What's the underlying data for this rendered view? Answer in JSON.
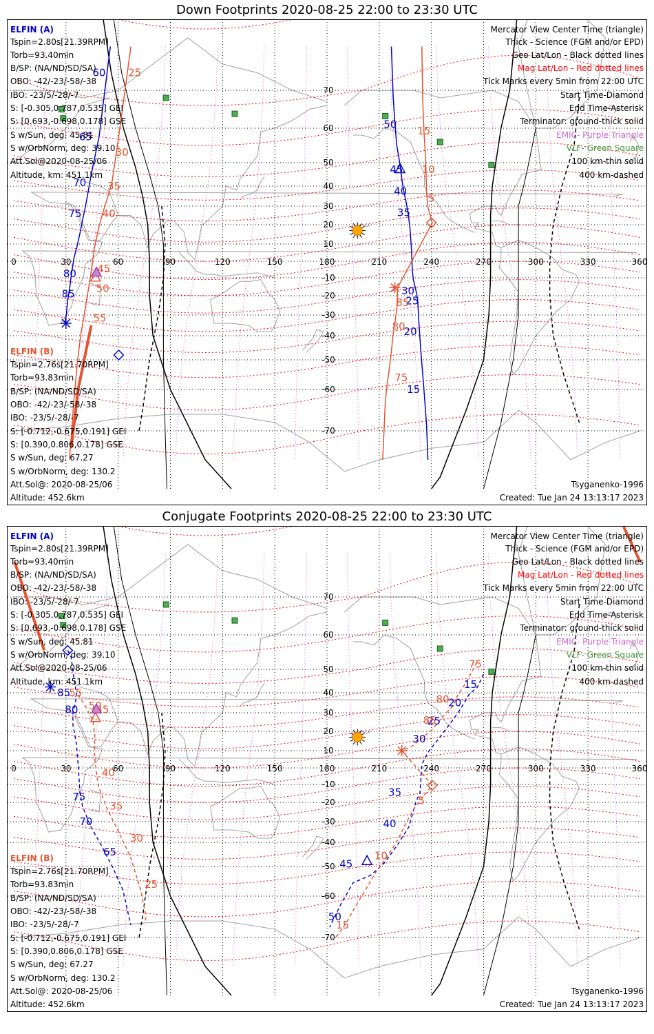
{
  "colors": {
    "elfin_a": "#0000cc",
    "elfin_b": "#e5532f",
    "mag_grid": "#ff0000",
    "geo_grid": "#000000",
    "emic": "#cc66cc",
    "vlf": "#3a9a3a",
    "sun": "#ffa500",
    "coast": "#a0a0a0"
  },
  "legend_right": [
    {
      "text": "Mercator View Center Time (triangle)",
      "color": "#000000"
    },
    {
      "text": "Thick - Science (FGM and/or EPD)",
      "color": "#000000"
    },
    {
      "text": "Geo Lat/Lon - Black dotted lines",
      "color": "#000000"
    },
    {
      "text": "Mag Lat/Lon - Red dotted lines",
      "color": "#ff0000"
    },
    {
      "text": "Tick Marks every 5min from 22:00 UTC",
      "color": "#000000"
    },
    {
      "text": "Start Time-Diamond",
      "color": "#000000"
    },
    {
      "text": "End Time-Asterisk",
      "color": "#000000"
    },
    {
      "text": "Terminator: ground-thick solid",
      "color": "#000000"
    },
    {
      "text": "EMIC- Purple Triangle",
      "color": "#cc66cc"
    },
    {
      "text": "VLF- Green Square",
      "color": "#3a9a3a"
    },
    {
      "text": "100 km-thin solid",
      "color": "#000000"
    },
    {
      "text": "400 km-dashed",
      "color": "#000000"
    }
  ],
  "elfin_a_info": {
    "name": "ELFIN (A)",
    "lines": [
      "Tspin=2.80s[21.39RPM]",
      "Torb=93.40min",
      "B/SP: (NA/ND/SD/SA)",
      "OBO: -42/-23/-58/-38",
      "IBO: -23/5/-28/-7",
      "S: [-0.305,0.787,0.535] GEI",
      "S: [0.693,-0.698,0.178] GSE",
      "S w/Sun, deg: 45.81",
      "S w/OrbNorm, deg: 39.10",
      "Att.Sol@2020-08-25/06",
      "Altitude, km: 451.1km"
    ]
  },
  "elfin_b_info": {
    "name": "ELFIN (B)",
    "lines": [
      "Tspin=2.76s[21.70RPM]",
      "Torb=93.83min",
      "B/SP: (NA/ND/SD/SA)",
      "OBO: -42/-23/-58/-38",
      "IBO: -23/5/-28/-7",
      "S: [-0.712,-0.675,0.191] GEI",
      "S: [0.390,0.806,0.178] GSE",
      "S w/Sun, deg: 67.27",
      "S w/OrbNorm, deg: 130.2",
      "Att.Sol@: 2020-08-25/06",
      "Altitude: 452.6km"
    ]
  },
  "footer": {
    "model": "Tsyganenko-1996",
    "created": "Created: Tue Jan 24 13:13:17 2023"
  },
  "axes": {
    "lon_ticks": [
      0,
      30,
      60,
      90,
      120,
      150,
      180,
      210,
      240,
      270,
      300,
      330,
      360
    ],
    "lat_ticks": [
      70,
      60,
      50,
      40,
      30,
      20,
      10,
      -10,
      -20,
      -30,
      -40,
      -50,
      -60,
      -70
    ]
  },
  "panels": [
    {
      "title": "Down Footprints 2020-08-25 22:00 to 23:30 UTC",
      "a_west": [
        [
          55.5,
          75.0
        ],
        [
          49,
          57.5
        ],
        [
          45.6,
          49.0
        ],
        [
          43.6,
          41.3
        ],
        [
          42.2,
          34.5
        ],
        [
          40.8,
          28.0
        ],
        [
          39.4,
          22.0
        ],
        [
          38.0,
          15.5
        ],
        [
          36.3,
          8.5
        ],
        [
          34.6,
          2.0
        ],
        [
          33.2,
          -7.5
        ],
        [
          32.1,
          -16.0
        ],
        [
          31.0,
          -22.0
        ],
        [
          30.2,
          -30.0
        ],
        [
          29.3,
          -34.0
        ]
      ],
      "a_west_labels": [
        [
          "60",
          49,
          72
        ],
        [
          "65",
          41.3,
          57.5
        ],
        [
          "70",
          37.9,
          41.5
        ],
        [
          "75",
          35.2,
          26.0
        ],
        [
          "80",
          32.2,
          -7.5
        ],
        [
          "85",
          31.3,
          -19.0
        ]
      ],
      "b_west": [
        [
          67.3,
          75.0
        ],
        [
          62.3,
          64.5
        ],
        [
          59,
          53.0
        ],
        [
          56.4,
          41.5
        ],
        [
          53.8,
          34.0
        ],
        [
          51.0,
          26.0
        ],
        [
          48.7,
          18.0
        ],
        [
          46.4,
          8.0
        ],
        [
          44.8,
          -4.5
        ],
        [
          43.4,
          -13.5
        ],
        [
          41.9,
          -21.8
        ],
        [
          40.5,
          -30.0
        ],
        [
          38.5,
          -39.5
        ],
        [
          36.5,
          -51.0
        ],
        [
          34.5,
          -63.0
        ],
        [
          33.5,
          -68.5
        ],
        [
          32.0,
          -75.0
        ]
      ],
      "b_west_labels": [
        [
          "25",
          69.5,
          72
        ],
        [
          "30",
          62.2,
          53.0
        ],
        [
          "35",
          57.6,
          40.0
        ],
        [
          "40",
          54.7,
          26.0
        ],
        [
          "45",
          51.7,
          -4.5
        ],
        [
          "50",
          51.1,
          -16.0
        ],
        [
          "55",
          49.4,
          -31.5
        ]
      ],
      "b_thick": [
        [
          44.5,
          -35
        ],
        [
          37,
          -60
        ],
        [
          33,
          -73
        ]
      ],
      "a_east": [
        [
          217,
          75.0
        ],
        [
          218,
          68.3
        ],
        [
          219,
          61.5
        ],
        [
          220,
          55.3
        ],
        [
          222,
          49.0
        ],
        [
          223,
          43.0
        ],
        [
          224,
          38.0
        ],
        [
          225.5,
          32.0
        ],
        [
          226.8,
          25.0
        ],
        [
          227.7,
          18.0
        ],
        [
          228.6,
          6.5
        ],
        [
          229,
          -5.5
        ],
        [
          229.6,
          -11.0
        ],
        [
          231,
          -16.5
        ],
        [
          232.1,
          -22.0
        ],
        [
          232.7,
          -32.0
        ],
        [
          233.9,
          -46.0
        ],
        [
          235.5,
          -58.5
        ],
        [
          237.2,
          -68.5
        ],
        [
          238.0,
          -75.0
        ]
      ],
      "a_east_labels": [
        [
          "50",
          216.3,
          61.0
        ],
        [
          "45",
          219.9,
          47.0
        ],
        [
          "40",
          222.2,
          37.5
        ],
        [
          "35",
          224.1,
          26.5
        ],
        [
          "30",
          226.5,
          -17.3
        ],
        [
          "25",
          229.0,
          -22.7
        ],
        [
          "20",
          227.9,
          -38.0
        ],
        [
          "15",
          229.7,
          -60.0
        ]
      ],
      "b_east": [
        [
          234.5,
          75.0
        ],
        [
          235.0,
          67.5
        ],
        [
          235.7,
          59.2
        ],
        [
          236.7,
          51.0
        ],
        [
          237.0,
          43.0
        ],
        [
          237.3,
          36.0
        ],
        [
          238.0,
          29.5
        ],
        [
          239.0,
          26.0
        ],
        [
          240.5,
          21.0
        ],
        [
          220.6,
          -15.5
        ],
        [
          220.2,
          -26.0
        ],
        [
          219.3,
          -32.0
        ],
        [
          217.9,
          -40.0
        ],
        [
          216.8,
          -48.0
        ],
        [
          215.7,
          -53.5
        ],
        [
          214.6,
          -58.0
        ],
        [
          213.5,
          -63.0
        ],
        [
          212.9,
          -68.5
        ],
        [
          212.0,
          -75.0
        ]
      ],
      "b_east_labels": [
        [
          "15",
          235.7,
          59.2
        ],
        [
          "10",
          238.2,
          47.0
        ],
        [
          "5",
          240.0,
          34.0
        ],
        [
          "85",
          223.5,
          -23.5
        ],
        [
          "80",
          221.2,
          -35.5
        ],
        [
          "75",
          222.7,
          -56.0
        ]
      ],
      "a_start": [
        60.3,
        -48.0
      ],
      "b_start": [
        240.0,
        21.0
      ],
      "a_end": [
        30.0,
        -34.0
      ],
      "b_end": [
        219.0,
        -15.5
      ],
      "a_view": [
        222.0,
        47.5
      ],
      "b_view": [
        47.0,
        -9.5
      ],
      "emic": [
        [
          47.5,
          -6.5
        ]
      ],
      "sun": [
        197.5,
        17.0
      ],
      "vlf": [
        [
          27.5,
          65.0
        ],
        [
          28.4,
          62.6
        ],
        [
          87.5,
          68.0
        ],
        [
          127.0,
          63.8
        ],
        [
          213.5,
          63.2
        ],
        [
          245.0,
          56.0
        ],
        [
          274.5,
          49.0
        ]
      ]
    },
    {
      "title": "Conjugate Footprints 2020-08-25 22:00 to 23:30 UTC",
      "a_west": [
        [
          31.0,
          55.5
        ],
        [
          33.0,
          53.5
        ],
        [
          34.5,
          46.5
        ],
        [
          36.0,
          40.0
        ],
        [
          35.5,
          35.0
        ],
        [
          34.0,
          30.0
        ],
        [
          34.0,
          23.5
        ],
        [
          35.0,
          18.5
        ],
        [
          36.0,
          13.5
        ],
        [
          37.0,
          2.0
        ],
        [
          37.5,
          -6.0
        ],
        [
          38.0,
          -14.5
        ],
        [
          39.5,
          -22.0
        ],
        [
          44.0,
          -32.0
        ],
        [
          50.5,
          -41.5
        ],
        [
          57.0,
          -50.5
        ],
        [
          62.8,
          -58.0
        ],
        [
          67.2,
          -67.0
        ]
      ],
      "a_west_labels": [
        [
          "85",
          28.8,
          40.0
        ],
        [
          "80",
          33.2,
          31.5
        ],
        [
          "75",
          37.5,
          -17.0
        ],
        [
          "70",
          41.5,
          -30.0
        ],
        [
          "65",
          55.2,
          -44.0
        ]
      ],
      "b_west": [
        [
          37.0,
          39.0
        ],
        [
          41.0,
          33.5
        ],
        [
          45.5,
          26.0
        ],
        [
          46.5,
          18.5
        ],
        [
          46.5,
          6.0
        ],
        [
          48.5,
          -10.5
        ],
        [
          53.5,
          -23.0
        ],
        [
          60.0,
          -34.5
        ],
        [
          67.0,
          -46.0
        ],
        [
          73.0,
          -58.0
        ],
        [
          76.0,
          -65.0
        ],
        [
          75.2,
          -66.5
        ]
      ],
      "b_west_labels": [
        [
          "55",
          35.5,
          40.0
        ],
        [
          "50",
          46.8,
          33.5
        ],
        [
          "45",
          51.0,
          31.5
        ],
        [
          "40",
          54.3,
          -3.0
        ],
        [
          "35",
          58.9,
          -22.0
        ],
        [
          "30",
          70.6,
          -38.0
        ],
        [
          "25",
          79.0,
          -56.0
        ]
      ],
      "b_thick_nw": [
        [
          0.5,
          74.0
        ],
        [
          17.5,
          55.5
        ]
      ],
      "b_thick_ne": [
        [
          350.5,
          78.0
        ],
        [
          360,
          74.0
        ]
      ],
      "a_east": [
        [
          270.0,
          48.0
        ],
        [
          266.5,
          42.5
        ],
        [
          261.5,
          39.0
        ],
        [
          256.5,
          31.5
        ],
        [
          251.0,
          24.5
        ],
        [
          244.0,
          16.0
        ],
        [
          238.0,
          9.0
        ],
        [
          234.5,
          2.0
        ],
        [
          233.5,
          -14.5
        ],
        [
          231.0,
          -20.0
        ],
        [
          227.0,
          -32.5
        ],
        [
          221.0,
          -40.5
        ],
        [
          213.0,
          -48.5
        ],
        [
          205.0,
          -53.0
        ],
        [
          195.0,
          -55.5
        ],
        [
          188.5,
          -61.5
        ],
        [
          181.5,
          -67.5
        ]
      ],
      "a_east_labels": [
        [
          "15",
          262.5,
          43.5
        ],
        [
          "20",
          253.5,
          35.0
        ],
        [
          "25",
          241.5,
          25.5
        ],
        [
          "30",
          233.0,
          16.0
        ],
        [
          "35",
          219.0,
          -14.5
        ],
        [
          "40",
          216.0,
          -31.0
        ],
        [
          "45",
          191.0,
          -49.0
        ],
        [
          "50",
          184.5,
          -65.0
        ]
      ],
      "b_east": [
        [
          266.0,
          52.0
        ],
        [
          260.5,
          45.0
        ],
        [
          255.0,
          38.5
        ],
        [
          252.0,
          33.0
        ],
        [
          247.0,
          28.5
        ],
        [
          240.0,
          20.5
        ],
        [
          234.5,
          16.5
        ],
        [
          228.5,
          12.0
        ],
        [
          223.0,
          10.0
        ],
        [
          240.5,
          -10.5
        ],
        [
          235.5,
          -16.5
        ],
        [
          230.5,
          -22.5
        ],
        [
          225.5,
          -30.5
        ],
        [
          220.5,
          -39.0
        ],
        [
          214.5,
          -46.0
        ],
        [
          208.5,
          -51.5
        ],
        [
          202.0,
          -58.0
        ],
        [
          195.0,
          -63.5
        ],
        [
          191.0,
          -66.5
        ],
        [
          185.0,
          -70.0
        ]
      ],
      "b_east_labels": [
        [
          "75",
          265.2,
          51.5
        ],
        [
          "80",
          246.5,
          36.8
        ],
        [
          "85",
          239.0,
          26.0
        ],
        [
          "5",
          234.2,
          -19.0
        ],
        [
          "10",
          211.0,
          -45.5
        ],
        [
          "15",
          189.0,
          -67.0
        ]
      ],
      "a_start": [
        31.0,
        55.5
      ],
      "b_start": [
        240.5,
        -10.5
      ],
      "a_end": [
        21.0,
        42.5
      ],
      "b_end": [
        223.0,
        10.0
      ],
      "a_view": [
        203.0,
        -47.5
      ],
      "b_view": [
        47.0,
        27.5
      ],
      "emic": [
        [
          47.5,
          32.0
        ]
      ],
      "sun": [
        197.5,
        17.0
      ],
      "vlf": [
        [
          27.5,
          65.0
        ],
        [
          28.4,
          62.6
        ],
        [
          87.5,
          68.0
        ],
        [
          127.0,
          63.8
        ],
        [
          213.5,
          63.2
        ],
        [
          245.0,
          56.0
        ],
        [
          274.5,
          49.0
        ]
      ]
    }
  ]
}
